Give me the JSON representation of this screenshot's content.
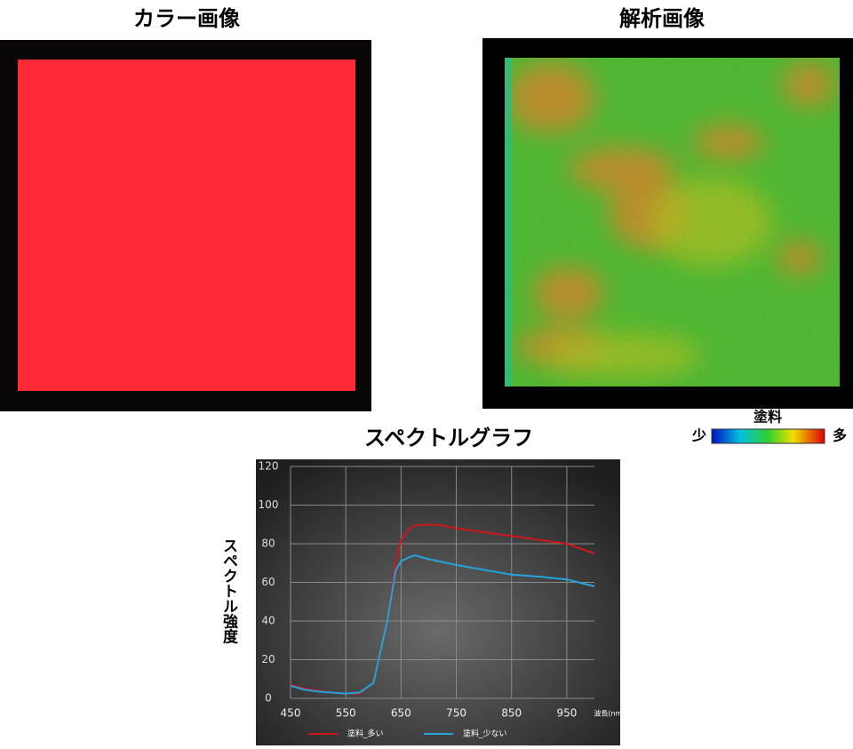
{
  "panels": {
    "color_title": "カラー画像",
    "analysis_title": "解析画像",
    "colorbar": {
      "title": "塗料",
      "low": "少",
      "high": "多"
    }
  },
  "chart_data": {
    "type": "line",
    "title": "スペクトルグラフ",
    "ylabel": "スペクトル強度",
    "xlabel": "波長(nm)",
    "x": [
      450,
      475,
      500,
      525,
      550,
      575,
      600,
      625,
      640,
      650,
      665,
      675,
      700,
      725,
      750,
      800,
      850,
      900,
      950,
      1000
    ],
    "series": [
      {
        "name": "塗料_多い",
        "color": "#d0161b",
        "values": [
          7,
          5,
          4,
          3,
          2.5,
          2.5,
          8,
          40,
          70,
          82,
          88,
          89.5,
          90,
          89.5,
          88,
          86,
          84,
          82,
          80,
          75
        ]
      },
      {
        "name": "塗料_少ない",
        "color": "#22a4dc",
        "values": [
          6.5,
          4.5,
          3.5,
          3,
          2.5,
          3,
          8,
          40,
          66,
          71,
          73,
          74,
          72,
          70.5,
          69,
          66.5,
          64,
          63,
          61.5,
          58
        ]
      }
    ],
    "xlim": [
      450,
      1000
    ],
    "xticks": [
      450,
      550,
      650,
      750,
      850,
      950
    ],
    "ylim": [
      0,
      120
    ],
    "yticks": [
      0,
      20,
      40,
      60,
      80,
      100,
      120
    ],
    "grid": true,
    "legend": "bottom"
  }
}
